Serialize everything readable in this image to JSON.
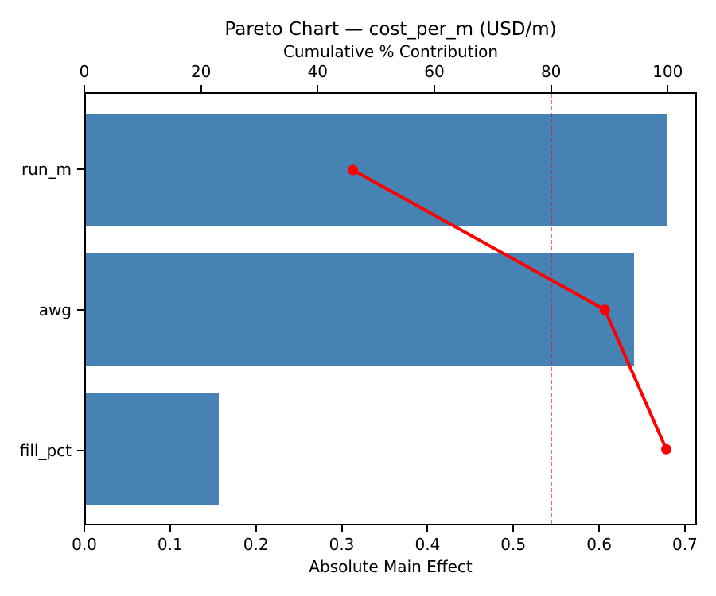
{
  "chart_data": {
    "type": "bar",
    "subtype": "pareto-horizontal-bars-with-cumulative-line",
    "title": "Pareto Chart — cost_per_m (USD/m)",
    "categories": [
      "run_m",
      "awg",
      "fill_pct"
    ],
    "series": [
      {
        "name": "Absolute Main Effect",
        "type": "barh",
        "values": [
          0.68,
          0.642,
          0.156
        ],
        "color": "#4682B4"
      },
      {
        "name": "Cumulative % Contribution",
        "type": "line",
        "values_pct": [
          46.0,
          89.4,
          100.0
        ],
        "color": "#FF0000",
        "marker": "circle"
      }
    ],
    "threshold_line": {
      "value_pct": 80,
      "style": "dashed",
      "color": "rgba(255,0,0,0.6)"
    },
    "top_axis": {
      "label": "Cumulative % Contribution",
      "ticks": [
        0,
        20,
        40,
        60,
        80,
        100
      ],
      "xlim": [
        0,
        105
      ]
    },
    "bottom_axis": {
      "label": "Absolute Main Effect",
      "tick_labels": [
        "0.0",
        "0.1",
        "0.2",
        "0.3",
        "0.4",
        "0.5",
        "0.6",
        "0.7"
      ],
      "tick_values": [
        0,
        0.1,
        0.2,
        0.3,
        0.4,
        0.5,
        0.6,
        0.7
      ],
      "xlim": [
        0,
        0.714
      ]
    },
    "grid": false,
    "legend": null,
    "background_color": "#ffffff",
    "text_color": "#000000"
  }
}
